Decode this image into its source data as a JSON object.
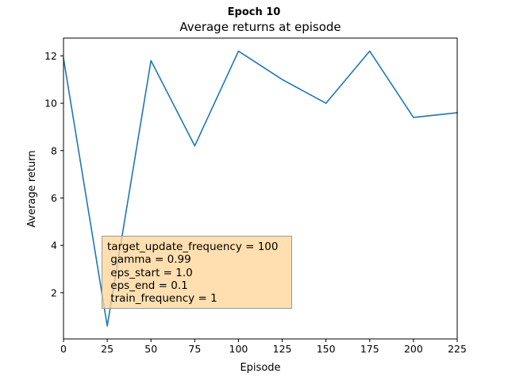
{
  "figure": {
    "suptitle": "Epoch 10"
  },
  "chart_data": {
    "type": "line",
    "title": "Average returns at episode",
    "xlabel": "Episode",
    "ylabel": "Average return",
    "xlim": [
      0,
      225
    ],
    "ylim": [
      0.05,
      12.75
    ],
    "x_ticks": [
      0,
      25,
      50,
      75,
      100,
      125,
      150,
      175,
      200,
      225
    ],
    "y_ticks": [
      2,
      4,
      6,
      8,
      10,
      12
    ],
    "grid": false,
    "series": [
      {
        "x": [
          0,
          25,
          50,
          75,
          100,
          125,
          150,
          175,
          200,
          225
        ],
        "y": [
          11.9,
          0.6,
          11.8,
          8.2,
          12.2,
          11.0,
          10.0,
          12.2,
          9.4,
          9.6
        ],
        "color": "#1f77b4"
      }
    ],
    "annotation": {
      "lines": [
        "target_update_frequency = 100",
        " gamma = 0.99",
        " eps_start = 1.0",
        " eps_end = 0.1",
        " train_frequency = 1"
      ],
      "background": "#ffd596"
    }
  }
}
